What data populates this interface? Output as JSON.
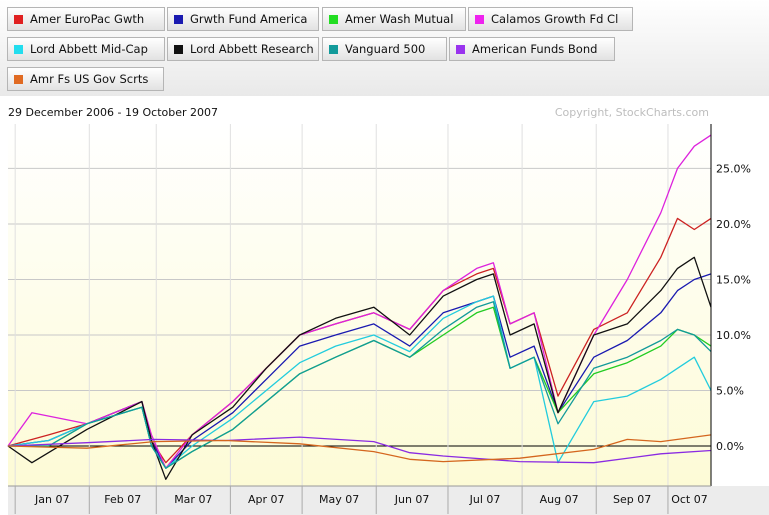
{
  "legend": [
    {
      "label": "Amer EuroPac Gwth",
      "color": "#e02020"
    },
    {
      "label": "Grwth Fund America",
      "color": "#1a1ab0"
    },
    {
      "label": "Amer Wash Mutual",
      "color": "#22dd22"
    },
    {
      "label": "Calamos Growth Fd Cl",
      "color": "#ee22ee"
    },
    {
      "label": "Lord Abbett Mid-Cap",
      "color": "#22ddee"
    },
    {
      "label": "Lord Abbett Research",
      "color": "#111111"
    },
    {
      "label": "Vanguard 500",
      "color": "#129a9a"
    },
    {
      "label": "American Funds Bond",
      "color": "#9933ee"
    },
    {
      "label": "Amr Fs US Gov Scrts",
      "color": "#e06a22"
    }
  ],
  "date_range": "29 December 2006 - 19 October 2007",
  "copyright": "Copyright, StockCharts.com",
  "chart_data": {
    "type": "line",
    "x_ticks": [
      "Jan 07",
      "Feb 07",
      "Mar 07",
      "Apr 07",
      "May 07",
      "Jun 07",
      "Jul 07",
      "Aug 07",
      "Sep 07",
      "Oct 07"
    ],
    "y_ticks": [
      "25.0%",
      "20.0%",
      "15.0%",
      "10.0%",
      "5.0%",
      "0.0%"
    ],
    "y_tick_values": [
      25,
      20,
      15,
      10,
      5,
      0
    ],
    "ylim": [
      -3.6,
      29
    ],
    "xlim": [
      "2006-12-29",
      "2007-10-19"
    ],
    "grid": true,
    "series": [
      {
        "name": "Amer EuroPac Gwth",
        "color": "#cc2222",
        "x": [
          "2006-12-29",
          "2007-01-15",
          "2007-01-31",
          "2007-02-23",
          "2007-02-27",
          "2007-03-05",
          "2007-03-16",
          "2007-04-02",
          "2007-04-16",
          "2007-04-30",
          "2007-05-15",
          "2007-05-31",
          "2007-06-15",
          "2007-06-29",
          "2007-07-13",
          "2007-07-20",
          "2007-07-27",
          "2007-08-06",
          "2007-08-16",
          "2007-08-31",
          "2007-09-14",
          "2007-09-28",
          "2007-10-05",
          "2007-10-12",
          "2007-10-19"
        ],
        "y": [
          0,
          1,
          2,
          4,
          0.5,
          -1.5,
          1,
          4,
          7,
          10,
          11,
          12,
          10.5,
          14,
          15.5,
          16,
          11,
          12,
          4.5,
          10.5,
          12,
          17,
          20.5,
          19.5,
          20.5
        ]
      },
      {
        "name": "Grwth Fund America",
        "color": "#1a1ab0",
        "x": [
          "2006-12-29",
          "2007-01-15",
          "2007-01-31",
          "2007-02-23",
          "2007-02-27",
          "2007-03-05",
          "2007-03-16",
          "2007-04-02",
          "2007-04-16",
          "2007-04-30",
          "2007-05-15",
          "2007-05-31",
          "2007-06-15",
          "2007-06-29",
          "2007-07-13",
          "2007-07-20",
          "2007-07-27",
          "2007-08-06",
          "2007-08-16",
          "2007-08-31",
          "2007-09-14",
          "2007-09-28",
          "2007-10-05",
          "2007-10-12",
          "2007-10-19"
        ],
        "y": [
          0,
          0.5,
          2,
          4,
          0.5,
          -2,
          0.5,
          3,
          6,
          9,
          10,
          11,
          9,
          12,
          13,
          13.5,
          8,
          9,
          3,
          8,
          9.5,
          12,
          14,
          15,
          15.5
        ]
      },
      {
        "name": "Amer Wash Mutual",
        "color": "#22cc22",
        "x": [
          "2006-12-29",
          "2007-01-15",
          "2007-01-31",
          "2007-02-23",
          "2007-02-27",
          "2007-03-05",
          "2007-03-16",
          "2007-04-02",
          "2007-04-16",
          "2007-04-30",
          "2007-05-15",
          "2007-05-31",
          "2007-06-15",
          "2007-06-29",
          "2007-07-13",
          "2007-07-20",
          "2007-07-27",
          "2007-08-06",
          "2007-08-16",
          "2007-08-31",
          "2007-09-14",
          "2007-09-28",
          "2007-10-05",
          "2007-10-12",
          "2007-10-19"
        ],
        "y": [
          0,
          0,
          2,
          3.5,
          0,
          -2,
          -0.5,
          1.5,
          4,
          6.5,
          8,
          9.5,
          8,
          10,
          12,
          12.5,
          7,
          8,
          3,
          6.5,
          7.5,
          9,
          10.5,
          10,
          9
        ]
      },
      {
        "name": "Calamos Growth Fd Cl",
        "color": "#dd22dd",
        "x": [
          "2006-12-29",
          "2007-01-08",
          "2007-01-31",
          "2007-02-23",
          "2007-02-27",
          "2007-03-05",
          "2007-03-16",
          "2007-04-02",
          "2007-04-16",
          "2007-04-30",
          "2007-05-15",
          "2007-05-31",
          "2007-06-15",
          "2007-06-29",
          "2007-07-13",
          "2007-07-20",
          "2007-07-27",
          "2007-08-06",
          "2007-08-16",
          "2007-08-31",
          "2007-09-14",
          "2007-09-28",
          "2007-10-05",
          "2007-10-12",
          "2007-10-19"
        ],
        "y": [
          0,
          3,
          2,
          4,
          1,
          -2,
          1,
          4,
          7,
          10,
          11,
          12,
          10.5,
          14,
          16,
          16.5,
          11,
          12,
          3,
          10,
          15,
          21,
          25,
          27,
          28
        ]
      },
      {
        "name": "Lord Abbett Mid-Cap",
        "color": "#22ccdd",
        "x": [
          "2006-12-29",
          "2007-01-15",
          "2007-01-31",
          "2007-02-23",
          "2007-02-27",
          "2007-03-05",
          "2007-03-16",
          "2007-04-02",
          "2007-04-16",
          "2007-04-30",
          "2007-05-15",
          "2007-05-31",
          "2007-06-15",
          "2007-06-29",
          "2007-07-13",
          "2007-07-20",
          "2007-07-27",
          "2007-08-06",
          "2007-08-16",
          "2007-08-31",
          "2007-09-14",
          "2007-09-28",
          "2007-10-05",
          "2007-10-12",
          "2007-10-19"
        ],
        "y": [
          0,
          0.5,
          2,
          3.5,
          0,
          -2,
          0,
          2.5,
          5,
          7.5,
          9,
          10,
          8.5,
          11.5,
          13,
          13.5,
          7,
          8,
          -1.5,
          4,
          4.5,
          6,
          7,
          8,
          5
        ]
      },
      {
        "name": "Lord Abbett Research",
        "color": "#111111",
        "x": [
          "2006-12-29",
          "2007-01-08",
          "2007-01-31",
          "2007-02-23",
          "2007-02-27",
          "2007-03-05",
          "2007-03-16",
          "2007-04-02",
          "2007-04-16",
          "2007-04-30",
          "2007-05-15",
          "2007-05-31",
          "2007-06-15",
          "2007-06-29",
          "2007-07-13",
          "2007-07-20",
          "2007-07-27",
          "2007-08-06",
          "2007-08-16",
          "2007-08-31",
          "2007-09-14",
          "2007-09-28",
          "2007-10-05",
          "2007-10-12",
          "2007-10-19"
        ],
        "y": [
          0,
          -1.5,
          1.5,
          4,
          0.5,
          -3,
          1,
          3.5,
          7,
          10,
          11.5,
          12.5,
          10,
          13.5,
          15,
          15.5,
          10,
          11,
          3,
          10,
          11,
          14,
          16,
          17,
          12.5
        ]
      },
      {
        "name": "Vanguard 500",
        "color": "#129a9a",
        "x": [
          "2006-12-29",
          "2007-01-15",
          "2007-01-31",
          "2007-02-23",
          "2007-02-27",
          "2007-03-05",
          "2007-03-16",
          "2007-04-02",
          "2007-04-16",
          "2007-04-30",
          "2007-05-15",
          "2007-05-31",
          "2007-06-15",
          "2007-06-29",
          "2007-07-13",
          "2007-07-20",
          "2007-07-27",
          "2007-08-06",
          "2007-08-16",
          "2007-08-31",
          "2007-09-14",
          "2007-09-28",
          "2007-10-05",
          "2007-10-12",
          "2007-10-19"
        ],
        "y": [
          0,
          0,
          2,
          3.5,
          0,
          -2,
          -0.5,
          1.5,
          4,
          6.5,
          8,
          9.5,
          8,
          10.5,
          12.5,
          13,
          7,
          8,
          2,
          7,
          8,
          9.5,
          10.5,
          10,
          8.5
        ]
      },
      {
        "name": "American Funds Bond",
        "color": "#8a2be2",
        "x": [
          "2006-12-29",
          "2007-01-31",
          "2007-02-28",
          "2007-03-30",
          "2007-04-30",
          "2007-05-31",
          "2007-06-15",
          "2007-06-29",
          "2007-07-31",
          "2007-08-31",
          "2007-09-28",
          "2007-10-19"
        ],
        "y": [
          0,
          0.3,
          0.6,
          0.5,
          0.8,
          0.4,
          -0.6,
          -0.9,
          -1.4,
          -1.5,
          -0.7,
          -0.4
        ]
      },
      {
        "name": "Amr Fs US Gov Scrts",
        "color": "#d4661e",
        "x": [
          "2006-12-29",
          "2007-01-31",
          "2007-02-28",
          "2007-03-30",
          "2007-04-30",
          "2007-05-31",
          "2007-06-15",
          "2007-06-29",
          "2007-07-31",
          "2007-08-31",
          "2007-09-14",
          "2007-09-28",
          "2007-10-19"
        ],
        "y": [
          0,
          -0.2,
          0.4,
          0.5,
          0.2,
          -0.5,
          -1.2,
          -1.4,
          -1.1,
          -0.3,
          0.6,
          0.4,
          1
        ]
      }
    ]
  }
}
